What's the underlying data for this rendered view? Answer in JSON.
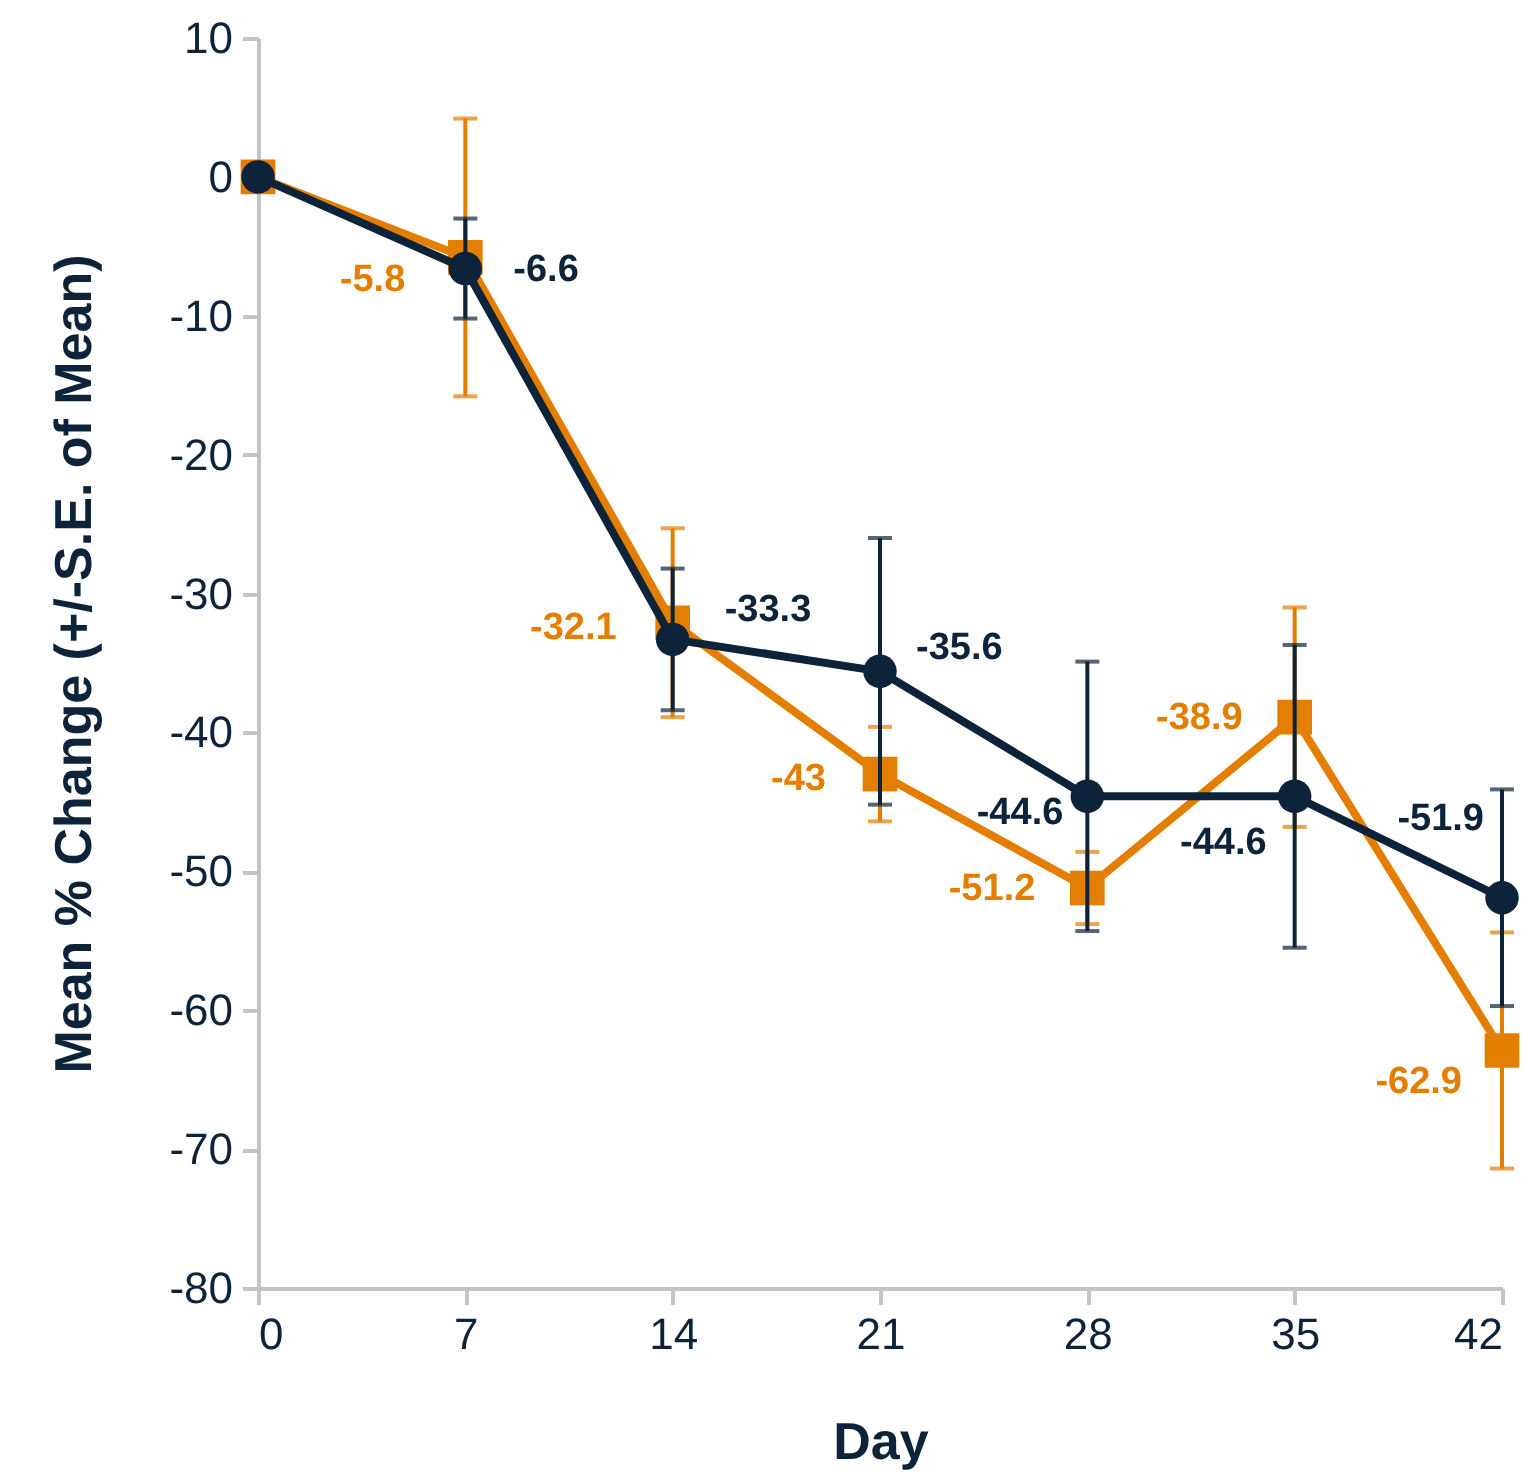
{
  "chart_data": {
    "type": "line",
    "xlabel": "Day",
    "ylabel": "Mean % Change (+/-S.E. of Mean)",
    "x": [
      0,
      7,
      14,
      21,
      28,
      35,
      42
    ],
    "xlim": [
      0,
      42
    ],
    "xticks": [
      0,
      7,
      14,
      21,
      28,
      35,
      42
    ],
    "ylim": [
      -80,
      10
    ],
    "yticks": [
      -80,
      -70,
      -60,
      -50,
      -40,
      -30,
      -20,
      -10,
      0,
      10
    ],
    "grid": false,
    "series": [
      {
        "color": "#e37e00",
        "marker": "square",
        "values": [
          0,
          -5.8,
          -32.1,
          -43,
          -51.2,
          -38.9,
          -62.9
        ],
        "errors": [
          null,
          10,
          6.8,
          3.4,
          2.6,
          7.9,
          8.5
        ],
        "value_labels": [
          null,
          "-5.8",
          "-32.1",
          "-43",
          "-51.2",
          "-38.9",
          "-62.9"
        ]
      },
      {
        "color": "#0c2339",
        "marker": "circle",
        "values": [
          0,
          -6.6,
          -33.3,
          -35.6,
          -44.6,
          -44.6,
          -51.9
        ],
        "errors": [
          null,
          3.6,
          5.1,
          9.6,
          9.7,
          10.9,
          7.8
        ],
        "value_labels": [
          null,
          "-6.6",
          "-33.3",
          "-35.6",
          "-44.6",
          "-44.6",
          "-51.9"
        ]
      }
    ]
  }
}
